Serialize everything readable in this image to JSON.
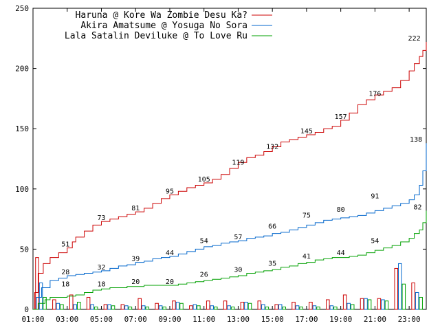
{
  "chart_data": {
    "type": "line",
    "title": "",
    "xlabel": "",
    "ylabel": "",
    "x_ticks": [
      "01:00",
      "03:00",
      "05:00",
      "07:00",
      "09:00",
      "11:00",
      "13:00",
      "15:00",
      "17:00",
      "19:00",
      "21:00",
      "23:00"
    ],
    "y_ticks": [
      "0",
      "50",
      "100",
      "150",
      "200",
      "250"
    ],
    "xlim": [
      1.0,
      24.0
    ],
    "ylim": [
      0,
      250
    ],
    "grid": false,
    "legend_position": "top-left",
    "series": [
      {
        "name": "Haruna @ Kore Wa Zombie Desu Ka?",
        "color": "#cc0000",
        "x": [
          1.0,
          1.1,
          1.3,
          1.6,
          2.0,
          2.5,
          3.0,
          3.3,
          3.5,
          4.0,
          4.5,
          5.0,
          5.5,
          6.0,
          6.5,
          7.0,
          7.5,
          8.0,
          8.5,
          9.0,
          9.5,
          10.0,
          10.5,
          11.0,
          11.5,
          12.0,
          12.5,
          13.0,
          13.5,
          14.0,
          14.5,
          15.0,
          15.5,
          16.0,
          16.5,
          17.0,
          17.5,
          18.0,
          18.5,
          19.0,
          19.5,
          20.0,
          20.5,
          21.0,
          21.5,
          22.0,
          22.5,
          23.0,
          23.3,
          23.6,
          23.8,
          24.0
        ],
        "y": [
          0,
          14,
          30,
          38,
          43,
          47,
          51,
          56,
          60,
          65,
          70,
          73,
          75,
          77,
          79,
          81,
          84,
          88,
          92,
          95,
          98,
          101,
          103,
          105,
          108,
          112,
          117,
          122,
          126,
          128,
          131,
          135,
          139,
          141,
          143,
          145,
          147,
          150,
          152,
          157,
          163,
          170,
          174,
          178,
          181,
          184,
          190,
          198,
          204,
          210,
          215,
          222
        ],
        "labels": [
          {
            "x": 2.9,
            "y": 51,
            "text": "51"
          },
          {
            "x": 5.0,
            "y": 73,
            "text": "73"
          },
          {
            "x": 7.0,
            "y": 81,
            "text": "81"
          },
          {
            "x": 9.0,
            "y": 95,
            "text": "95"
          },
          {
            "x": 11.0,
            "y": 105,
            "text": "105"
          },
          {
            "x": 13.0,
            "y": 119,
            "text": "119"
          },
          {
            "x": 15.0,
            "y": 132,
            "text": "132"
          },
          {
            "x": 17.0,
            "y": 145,
            "text": "145"
          },
          {
            "x": 19.0,
            "y": 157,
            "text": "157"
          },
          {
            "x": 21.0,
            "y": 176,
            "text": "176"
          },
          {
            "x": 23.3,
            "y": 222,
            "text": "222"
          }
        ]
      },
      {
        "name": "Akira Amatsume @ Yosuga No Sora",
        "color": "#0066cc",
        "x": [
          1.0,
          1.2,
          1.5,
          2.0,
          2.5,
          3.0,
          3.5,
          4.0,
          4.5,
          5.0,
          5.5,
          6.0,
          6.5,
          7.0,
          7.5,
          8.0,
          8.5,
          9.0,
          9.5,
          10.0,
          10.5,
          11.0,
          11.5,
          12.0,
          12.5,
          13.0,
          13.5,
          14.0,
          14.5,
          15.0,
          15.5,
          16.0,
          16.5,
          17.0,
          17.5,
          18.0,
          18.5,
          19.0,
          19.5,
          20.0,
          20.5,
          21.0,
          21.5,
          22.0,
          22.5,
          23.0,
          23.3,
          23.6,
          23.8,
          24.0
        ],
        "y": [
          0,
          10,
          18,
          24,
          26,
          28,
          29,
          30,
          31,
          32,
          34,
          36,
          37,
          39,
          40,
          42,
          43,
          44,
          46,
          48,
          50,
          52,
          53,
          55,
          56,
          57,
          59,
          60,
          61,
          63,
          64,
          66,
          68,
          70,
          72,
          74,
          75,
          76,
          77,
          78,
          80,
          82,
          84,
          86,
          88,
          91,
          95,
          103,
          115,
          138
        ],
        "labels": [
          {
            "x": 2.9,
            "y": 28,
            "text": "28"
          },
          {
            "x": 5.0,
            "y": 32,
            "text": "32"
          },
          {
            "x": 7.0,
            "y": 39,
            "text": "39"
          },
          {
            "x": 9.0,
            "y": 44,
            "text": "44"
          },
          {
            "x": 11.0,
            "y": 54,
            "text": "54"
          },
          {
            "x": 13.0,
            "y": 57,
            "text": "57"
          },
          {
            "x": 15.0,
            "y": 66,
            "text": "66"
          },
          {
            "x": 17.0,
            "y": 75,
            "text": "75"
          },
          {
            "x": 19.0,
            "y": 80,
            "text": "80"
          },
          {
            "x": 21.0,
            "y": 91,
            "text": "91"
          },
          {
            "x": 23.4,
            "y": 138,
            "text": "138"
          }
        ]
      },
      {
        "name": "Lala Satalin Deviluke @ To Love Ru",
        "color": "#00a000",
        "x": [
          1.0,
          1.3,
          1.7,
          2.0,
          2.5,
          3.0,
          3.5,
          4.0,
          4.5,
          5.0,
          5.5,
          6.0,
          6.5,
          7.0,
          7.5,
          8.0,
          8.5,
          9.0,
          9.5,
          10.0,
          10.5,
          11.0,
          11.5,
          12.0,
          12.5,
          13.0,
          13.5,
          14.0,
          14.5,
          15.0,
          15.5,
          16.0,
          16.5,
          17.0,
          17.5,
          18.0,
          18.5,
          19.0,
          19.5,
          20.0,
          20.5,
          21.0,
          21.5,
          22.0,
          22.5,
          23.0,
          23.3,
          23.6,
          23.8,
          24.0
        ],
        "y": [
          0,
          5,
          8,
          10,
          10,
          11,
          12,
          14,
          16,
          17,
          18,
          18,
          19,
          19,
          20,
          20,
          20,
          20,
          21,
          22,
          23,
          24,
          25,
          26,
          27,
          28,
          30,
          31,
          32,
          33,
          35,
          36,
          38,
          39,
          41,
          42,
          43,
          43,
          44,
          45,
          47,
          49,
          51,
          53,
          56,
          59,
          63,
          66,
          72,
          82
        ],
        "labels": [
          {
            "x": 2.9,
            "y": 18,
            "text": "18"
          },
          {
            "x": 5.0,
            "y": 18,
            "text": "18"
          },
          {
            "x": 7.0,
            "y": 20,
            "text": "20"
          },
          {
            "x": 9.0,
            "y": 20,
            "text": "20"
          },
          {
            "x": 11.0,
            "y": 26,
            "text": "26"
          },
          {
            "x": 13.0,
            "y": 30,
            "text": "30"
          },
          {
            "x": 15.0,
            "y": 35,
            "text": "35"
          },
          {
            "x": 17.0,
            "y": 41,
            "text": "41"
          },
          {
            "x": 19.0,
            "y": 44,
            "text": "44"
          },
          {
            "x": 21.0,
            "y": 54,
            "text": "54"
          },
          {
            "x": 23.5,
            "y": 82,
            "text": "82"
          }
        ]
      }
    ],
    "bars": {
      "type": "bar",
      "description_of_encoding": "hourly counts per series drawn along the x-axis",
      "hours": [
        1,
        2,
        3,
        4,
        5,
        6,
        7,
        8,
        9,
        10,
        11,
        12,
        13,
        14,
        15,
        16,
        17,
        18,
        19,
        20,
        21,
        22,
        23
      ],
      "series": [
        {
          "color": "#cc0000",
          "values": [
            43,
            8,
            12,
            10,
            4,
            4,
            9,
            5,
            7,
            3,
            7,
            7,
            6,
            7,
            4,
            6,
            6,
            8,
            12,
            9,
            9,
            34,
            22
          ]
        },
        {
          "color": "#0066cc",
          "values": [
            22,
            5,
            4,
            4,
            4,
            3,
            3,
            3,
            6,
            4,
            3,
            3,
            6,
            4,
            4,
            3,
            3,
            3,
            5,
            9,
            8,
            38,
            14
          ]
        },
        {
          "color": "#00a000",
          "values": [
            10,
            4,
            6,
            2,
            3,
            2,
            2,
            2,
            5,
            3,
            2,
            2,
            5,
            2,
            2,
            2,
            2,
            2,
            4,
            8,
            7,
            21,
            10
          ]
        }
      ]
    }
  }
}
